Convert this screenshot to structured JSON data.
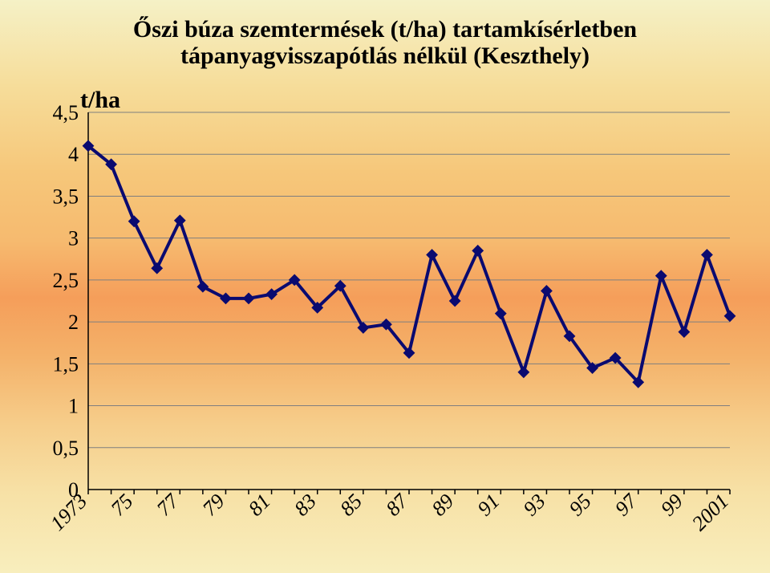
{
  "chart": {
    "type": "line",
    "title": "Őszi búza szemtermések (t/ha) tartamkísérletben tápanyagvisszapótlás nélkül (Keszthely)",
    "title_fontsize": 30,
    "ylabel": "t/ha",
    "label_fontsize": 30,
    "background_transparent": true,
    "grid_color": "#7f7f7f",
    "axis_color": "#000000",
    "line_color": "#0a0a70",
    "line_width": 4,
    "marker_style": "diamond",
    "marker_size": 12,
    "marker_fill": "#0a0a70",
    "marker_stroke": "#0a0a70",
    "ylim": [
      0,
      4.5
    ],
    "ytick_step": 0.5,
    "ytick_labels": [
      "0",
      "0,5",
      "1",
      "1,5",
      "2",
      "2,5",
      "3",
      "3,5",
      "4",
      "4,5"
    ],
    "x_labels_major": [
      "1973",
      "75",
      "77",
      "79",
      "81",
      "83",
      "85",
      "87",
      "89",
      "91",
      "93",
      "95",
      "97",
      "99",
      "2001"
    ],
    "x_label_rotation": -45,
    "years": [
      1973,
      1974,
      1975,
      1976,
      1977,
      1978,
      1979,
      1980,
      1981,
      1982,
      1983,
      1984,
      1985,
      1986,
      1987,
      1988,
      1989,
      1990,
      1991,
      1992,
      1993,
      1994,
      1995,
      1996,
      1997,
      1998,
      1999,
      2000,
      2001
    ],
    "values": [
      4.1,
      3.88,
      3.2,
      2.64,
      3.21,
      2.42,
      2.28,
      2.28,
      2.33,
      2.5,
      2.17,
      2.43,
      1.93,
      1.97,
      1.63,
      2.8,
      2.25,
      2.85,
      2.1,
      1.4,
      2.37,
      1.83,
      1.45,
      1.57,
      1.28,
      2.55,
      1.88,
      2.8,
      2.07
    ]
  }
}
